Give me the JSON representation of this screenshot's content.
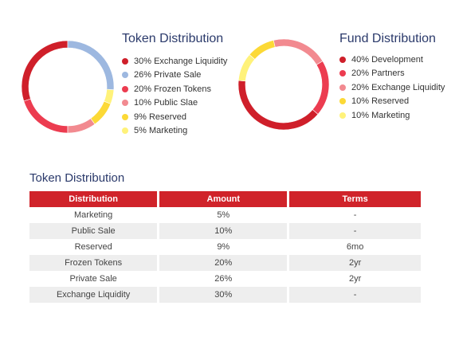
{
  "chart_data": [
    {
      "type": "pie",
      "title": "Token Distribution",
      "slices": [
        {
          "label": "30% Exchange Liquidity",
          "value": 30,
          "color": "#cf1f2a"
        },
        {
          "label": "26% Private Sale",
          "value": 26,
          "color": "#9db8e0"
        },
        {
          "label": "20% Frozen Tokens",
          "value": 20,
          "color": "#ec3c50"
        },
        {
          "label": "10% Public Slae",
          "value": 10,
          "color": "#f28a90"
        },
        {
          "label": "9% Reserved",
          "value": 9,
          "color": "#fcd936"
        },
        {
          "label": "5% Marketing",
          "value": 5,
          "color": "#fff27a"
        }
      ],
      "legend_position": "right"
    },
    {
      "type": "pie",
      "title": "Fund Distribution",
      "slices": [
        {
          "label": "40% Development",
          "value": 40,
          "color": "#cf1f2a"
        },
        {
          "label": "20% Partners",
          "value": 20,
          "color": "#ec3c50"
        },
        {
          "label": "20% Exchange Liquidity",
          "value": 20,
          "color": "#f28a90"
        },
        {
          "label": "10% Reserved",
          "value": 10,
          "color": "#fcd936"
        },
        {
          "label": "10% Marketing",
          "value": 10,
          "color": "#fff27a"
        }
      ],
      "legend_position": "right"
    }
  ],
  "table": {
    "title": "Token Distribution",
    "headers": [
      "Distribution",
      "Amount",
      "Terms"
    ],
    "rows": [
      [
        "Marketing",
        "5%",
        "-"
      ],
      [
        "Public Sale",
        "10%",
        "-"
      ],
      [
        "Reserved",
        "9%",
        "6mo"
      ],
      [
        "Frozen Tokens",
        "20%",
        "2yr"
      ],
      [
        "Private Sale",
        "26%",
        "2yr"
      ],
      [
        "Exchange Liquidity",
        "30%",
        "-"
      ]
    ]
  }
}
